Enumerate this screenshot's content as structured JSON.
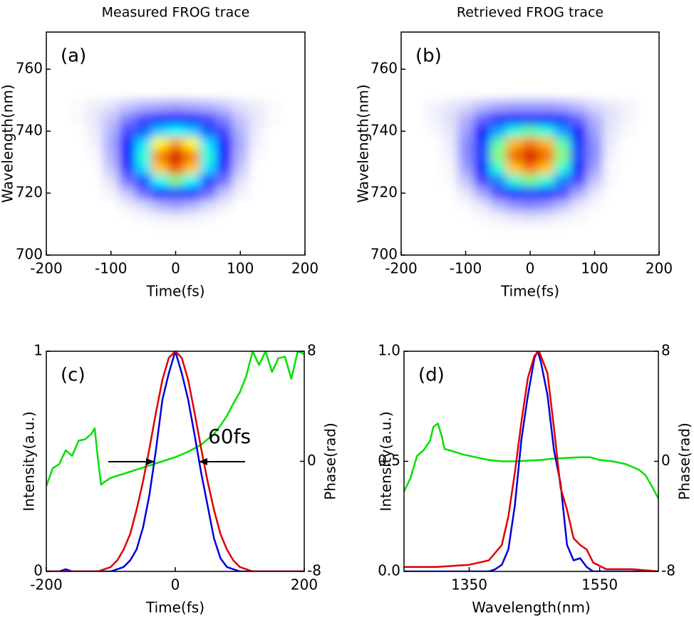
{
  "chart_data": [
    {
      "type": "heatmap",
      "title": "Measured FROG trace",
      "panel_label": "(a)",
      "x_label": "Time(fs)",
      "y_label": "Wavelength(nm)",
      "xlim": [
        -200,
        200
      ],
      "xticks": [
        -200,
        -100,
        0,
        100,
        200
      ],
      "ylim": [
        700,
        772
      ],
      "yticks": [
        700,
        720,
        740,
        760
      ],
      "x": [
        -150,
        -125,
        -100,
        -75,
        -50,
        -25,
        0,
        25,
        50,
        75,
        100,
        125,
        150
      ],
      "y": [
        748,
        744,
        740,
        736,
        732,
        728,
        724,
        720,
        716,
        712
      ],
      "z": [
        [
          1,
          3,
          5,
          8,
          10,
          11,
          12,
          11,
          10,
          8,
          5,
          3,
          1
        ],
        [
          1,
          4,
          8,
          15,
          22,
          28,
          30,
          28,
          22,
          15,
          8,
          4,
          1
        ],
        [
          0,
          3,
          10,
          22,
          38,
          50,
          55,
          50,
          38,
          22,
          10,
          3,
          0
        ],
        [
          0,
          2,
          11,
          28,
          52,
          75,
          85,
          75,
          52,
          28,
          11,
          2,
          0
        ],
        [
          0,
          1,
          10,
          30,
          58,
          88,
          100,
          88,
          58,
          30,
          10,
          1,
          0
        ],
        [
          0,
          0,
          8,
          26,
          52,
          80,
          92,
          80,
          52,
          26,
          8,
          0,
          0
        ],
        [
          0,
          0,
          5,
          17,
          36,
          55,
          65,
          55,
          36,
          17,
          5,
          0,
          0
        ],
        [
          0,
          0,
          2,
          8,
          18,
          30,
          35,
          30,
          18,
          8,
          2,
          0,
          0
        ],
        [
          0,
          0,
          0,
          3,
          6,
          10,
          12,
          10,
          6,
          3,
          0,
          0,
          0
        ],
        [
          0,
          0,
          0,
          0,
          1,
          2,
          3,
          2,
          1,
          0,
          0,
          0,
          0
        ]
      ]
    },
    {
      "type": "heatmap",
      "title": "Retrieved FROG trace",
      "panel_label": "(b)",
      "x_label": "Time(fs)",
      "y_label": "Wavelength(nm)",
      "xlim": [
        -200,
        200
      ],
      "xticks": [
        -200,
        -100,
        0,
        100,
        200
      ],
      "ylim": [
        700,
        772
      ],
      "yticks": [
        700,
        720,
        740,
        760
      ],
      "x": [
        -150,
        -125,
        -100,
        -75,
        -50,
        -25,
        0,
        25,
        50,
        75,
        100,
        125,
        150
      ],
      "y": [
        748,
        744,
        740,
        736,
        732,
        728,
        724,
        720,
        716,
        712
      ],
      "z": [
        [
          2,
          4,
          6,
          9,
          11,
          12,
          12,
          12,
          11,
          9,
          6,
          4,
          2
        ],
        [
          2,
          5,
          10,
          18,
          26,
          30,
          32,
          30,
          26,
          18,
          10,
          5,
          2
        ],
        [
          1,
          4,
          12,
          28,
          45,
          58,
          62,
          58,
          45,
          28,
          12,
          4,
          1
        ],
        [
          0,
          3,
          14,
          35,
          62,
          82,
          88,
          82,
          62,
          35,
          14,
          3,
          0
        ],
        [
          0,
          2,
          14,
          36,
          66,
          90,
          100,
          90,
          66,
          36,
          14,
          2,
          0
        ],
        [
          0,
          1,
          12,
          32,
          58,
          80,
          88,
          80,
          58,
          32,
          12,
          1,
          0
        ],
        [
          0,
          1,
          8,
          22,
          42,
          58,
          64,
          58,
          42,
          22,
          8,
          1,
          0
        ],
        [
          0,
          0,
          4,
          11,
          22,
          32,
          36,
          32,
          22,
          11,
          4,
          0,
          0
        ],
        [
          0,
          0,
          1,
          4,
          9,
          13,
          15,
          13,
          9,
          4,
          1,
          0,
          0
        ],
        [
          0,
          0,
          0,
          1,
          2,
          4,
          5,
          4,
          2,
          1,
          0,
          0,
          0
        ]
      ]
    },
    {
      "type": "line",
      "panel_label": "(c)",
      "x_label": "Time(fs)",
      "y_label": "Intensity(a.u.)",
      "y2_label": "Phase(rad)",
      "annotation": "60fs",
      "xlim": [
        -200,
        200
      ],
      "xticks": [
        -200,
        0,
        200
      ],
      "ylim": [
        0,
        1
      ],
      "yticks": [
        0,
        1
      ],
      "y2lim": [
        -8,
        8
      ],
      "y2ticks": [
        -8,
        0,
        8
      ],
      "series": [
        {
          "color": "#00e000",
          "axis": "y2",
          "x": [
            -200,
            -190,
            -180,
            -170,
            -160,
            -150,
            -140,
            -130,
            -125,
            -120,
            -115,
            -110,
            -100,
            -80,
            -60,
            -40,
            -20,
            0,
            20,
            40,
            60,
            70,
            80,
            90,
            100,
            110,
            120,
            130,
            140,
            150,
            160,
            170,
            180,
            190,
            200
          ],
          "values": [
            -1.8,
            -0.5,
            -0.2,
            0.8,
            0.4,
            1.5,
            1.6,
            2.0,
            2.4,
            0.2,
            -1.7,
            -1.5,
            -1.2,
            -0.9,
            -0.6,
            -0.3,
            0,
            0.3,
            0.7,
            1.2,
            2.0,
            2.6,
            3.3,
            4.2,
            5.0,
            6.2,
            8,
            7.0,
            8,
            6.5,
            7.5,
            7.6,
            6.0,
            8,
            7.8
          ]
        },
        {
          "color": "#0000dd",
          "x": [
            -200,
            -180,
            -170,
            -160,
            -120,
            -100,
            -90,
            -80,
            -70,
            -60,
            -50,
            -40,
            -30,
            -20,
            -10,
            0,
            10,
            20,
            30,
            40,
            50,
            60,
            70,
            80,
            90,
            100,
            120,
            200
          ],
          "values": [
            0,
            0,
            0.01,
            0,
            0,
            0,
            0.01,
            0.02,
            0.05,
            0.1,
            0.2,
            0.35,
            0.55,
            0.78,
            0.9,
            1,
            0.9,
            0.78,
            0.62,
            0.45,
            0.3,
            0.15,
            0.06,
            0.02,
            0.01,
            0,
            0,
            0
          ]
        },
        {
          "color": "#e00000",
          "x": [
            -200,
            -130,
            -120,
            -110,
            -100,
            -90,
            -80,
            -70,
            -60,
            -50,
            -40,
            -30,
            -20,
            -10,
            0,
            10,
            20,
            30,
            40,
            50,
            60,
            70,
            80,
            90,
            100,
            110,
            120,
            130,
            200
          ],
          "values": [
            0,
            0,
            0,
            0.01,
            0.02,
            0.05,
            0.1,
            0.17,
            0.28,
            0.41,
            0.56,
            0.72,
            0.87,
            0.97,
            1,
            0.97,
            0.87,
            0.72,
            0.56,
            0.41,
            0.28,
            0.17,
            0.1,
            0.05,
            0.02,
            0.01,
            0,
            0,
            0
          ]
        }
      ]
    },
    {
      "type": "line",
      "panel_label": "(d)",
      "x_label": "Wavelength(nm)",
      "y_label": "Intensity(a.u.)",
      "y2_label": "Phase(rad)",
      "xlim": [
        1250,
        1640
      ],
      "xticks": [
        1350,
        1550
      ],
      "ylim": [
        0,
        1
      ],
      "yticks": [
        {
          "value": 0,
          "label": "0.0"
        },
        {
          "value": 0.5,
          "label": "0.5"
        },
        {
          "value": 1,
          "label": "1.0"
        }
      ],
      "y2lim": [
        -8,
        8
      ],
      "y2ticks": [
        -8,
        0,
        8
      ],
      "series": [
        {
          "color": "#00e000",
          "axis": "y2",
          "x": [
            1250,
            1260,
            1270,
            1280,
            1290,
            1295,
            1302,
            1308,
            1312,
            1320,
            1340,
            1360,
            1380,
            1400,
            1420,
            1440,
            1460,
            1480,
            1500,
            1520,
            1535,
            1550,
            1570,
            1590,
            1610,
            1620,
            1630,
            1640
          ],
          "values": [
            -2.2,
            -1.2,
            0.4,
            0.8,
            1.5,
            2.5,
            2.75,
            1.8,
            0.9,
            0.8,
            0.5,
            0.3,
            0.1,
            0,
            0,
            0.05,
            0.1,
            0.2,
            0.25,
            0.3,
            0.3,
            0.1,
            0,
            -0.2,
            -0.6,
            -1,
            -1.8,
            -2.7
          ]
        },
        {
          "color": "#0000dd",
          "x": [
            1250,
            1380,
            1390,
            1400,
            1410,
            1420,
            1430,
            1440,
            1450,
            1455,
            1460,
            1470,
            1480,
            1490,
            1500,
            1510,
            1520,
            1530,
            1540,
            1640
          ],
          "values": [
            0,
            0,
            0.01,
            0.03,
            0.1,
            0.3,
            0.6,
            0.8,
            0.97,
            1,
            0.95,
            0.8,
            0.55,
            0.4,
            0.12,
            0.05,
            0.06,
            0.02,
            0,
            0
          ]
        },
        {
          "color": "#e00000",
          "x": [
            1250,
            1300,
            1350,
            1380,
            1400,
            1410,
            1420,
            1430,
            1440,
            1450,
            1457,
            1470,
            1480,
            1490,
            1500,
            1510,
            1520,
            1530,
            1540,
            1560,
            1600,
            1640
          ],
          "values": [
            0.02,
            0.02,
            0.03,
            0.05,
            0.12,
            0.25,
            0.45,
            0.68,
            0.88,
            0.98,
            1,
            0.9,
            0.65,
            0.38,
            0.28,
            0.15,
            0.12,
            0.1,
            0.04,
            0.01,
            0.01,
            0
          ]
        }
      ]
    }
  ]
}
